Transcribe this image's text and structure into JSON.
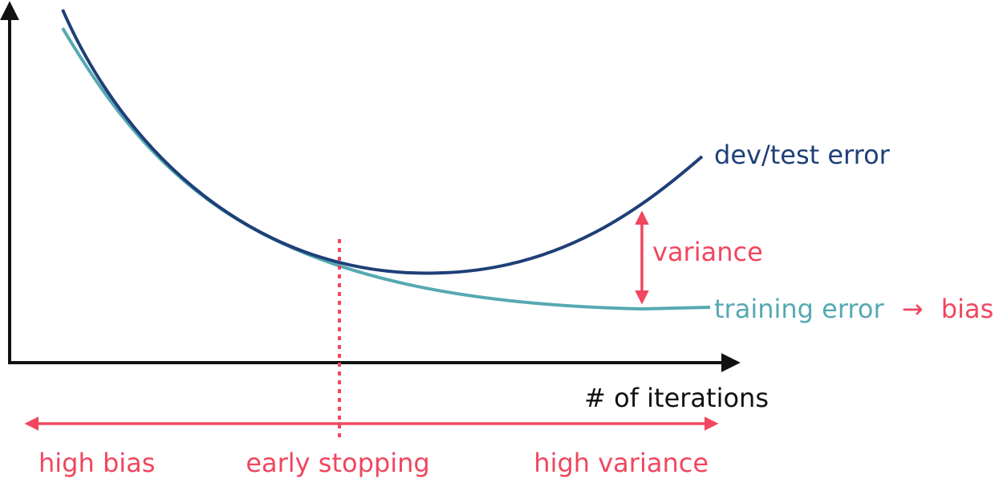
{
  "labels": {
    "dev_test_error": "dev/test error",
    "training_error": "training error",
    "arrow_glyph": "→",
    "bias": "bias",
    "variance": "variance",
    "x_axis": "# of iterations",
    "high_bias": "high bias",
    "early_stopping": "early stopping",
    "high_variance": "high variance"
  },
  "colors": {
    "dev_curve": "#1e3f78",
    "train_curve": "#56a9b2",
    "accent": "#f0465f",
    "axis": "#111111"
  }
}
